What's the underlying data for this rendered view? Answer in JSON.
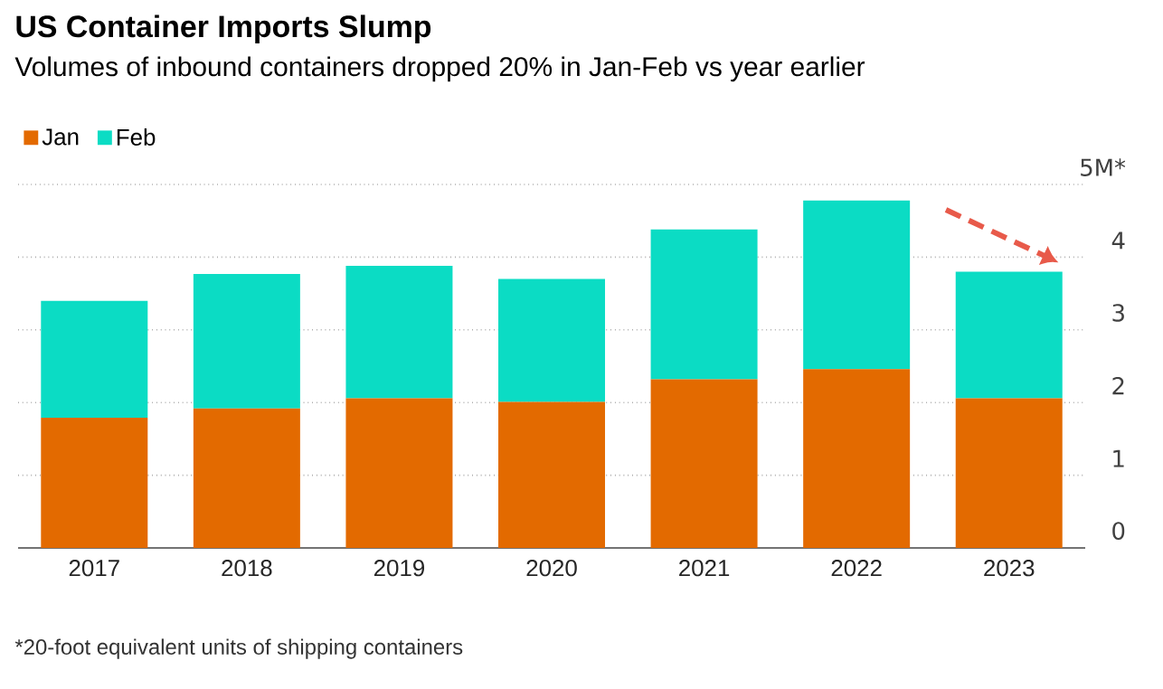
{
  "chart_data": {
    "type": "bar",
    "title": "US Container Imports Slump",
    "subtitle": "Volumes of inbound containers dropped 20% in Jan-Feb vs year earlier",
    "categories": [
      "2017",
      "2018",
      "2019",
      "2020",
      "2021",
      "2022",
      "2023"
    ],
    "series": [
      {
        "name": "Jan",
        "color": "#e36a00",
        "values": [
          1.79,
          1.92,
          2.06,
          2.01,
          2.32,
          2.46,
          2.06
        ]
      },
      {
        "name": "Feb",
        "color": "#0bdcc4",
        "values": [
          1.61,
          1.85,
          1.82,
          1.69,
          2.06,
          2.32,
          1.74
        ]
      }
    ],
    "stacked": true,
    "ylim": [
      0,
      5
    ],
    "yticks": [
      0,
      1,
      2,
      3,
      4,
      {
        "value": 5,
        "label": "5M*"
      }
    ],
    "grid": "y",
    "legend": "top left",
    "annotations": [
      "*20-foot equivalent units of shipping containers"
    ]
  }
}
